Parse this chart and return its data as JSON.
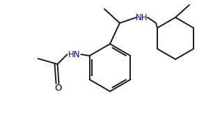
{
  "background_color": "#ffffff",
  "line_color": "#1a1a1a",
  "text_color": "#000000",
  "nh_color": "#0000cd",
  "line_width": 1.4,
  "font_size": 8.5,
  "figsize": [
    3.06,
    1.85
  ],
  "dpi": 100,
  "xlim": [
    0,
    306
  ],
  "ylim": [
    0,
    185
  ]
}
